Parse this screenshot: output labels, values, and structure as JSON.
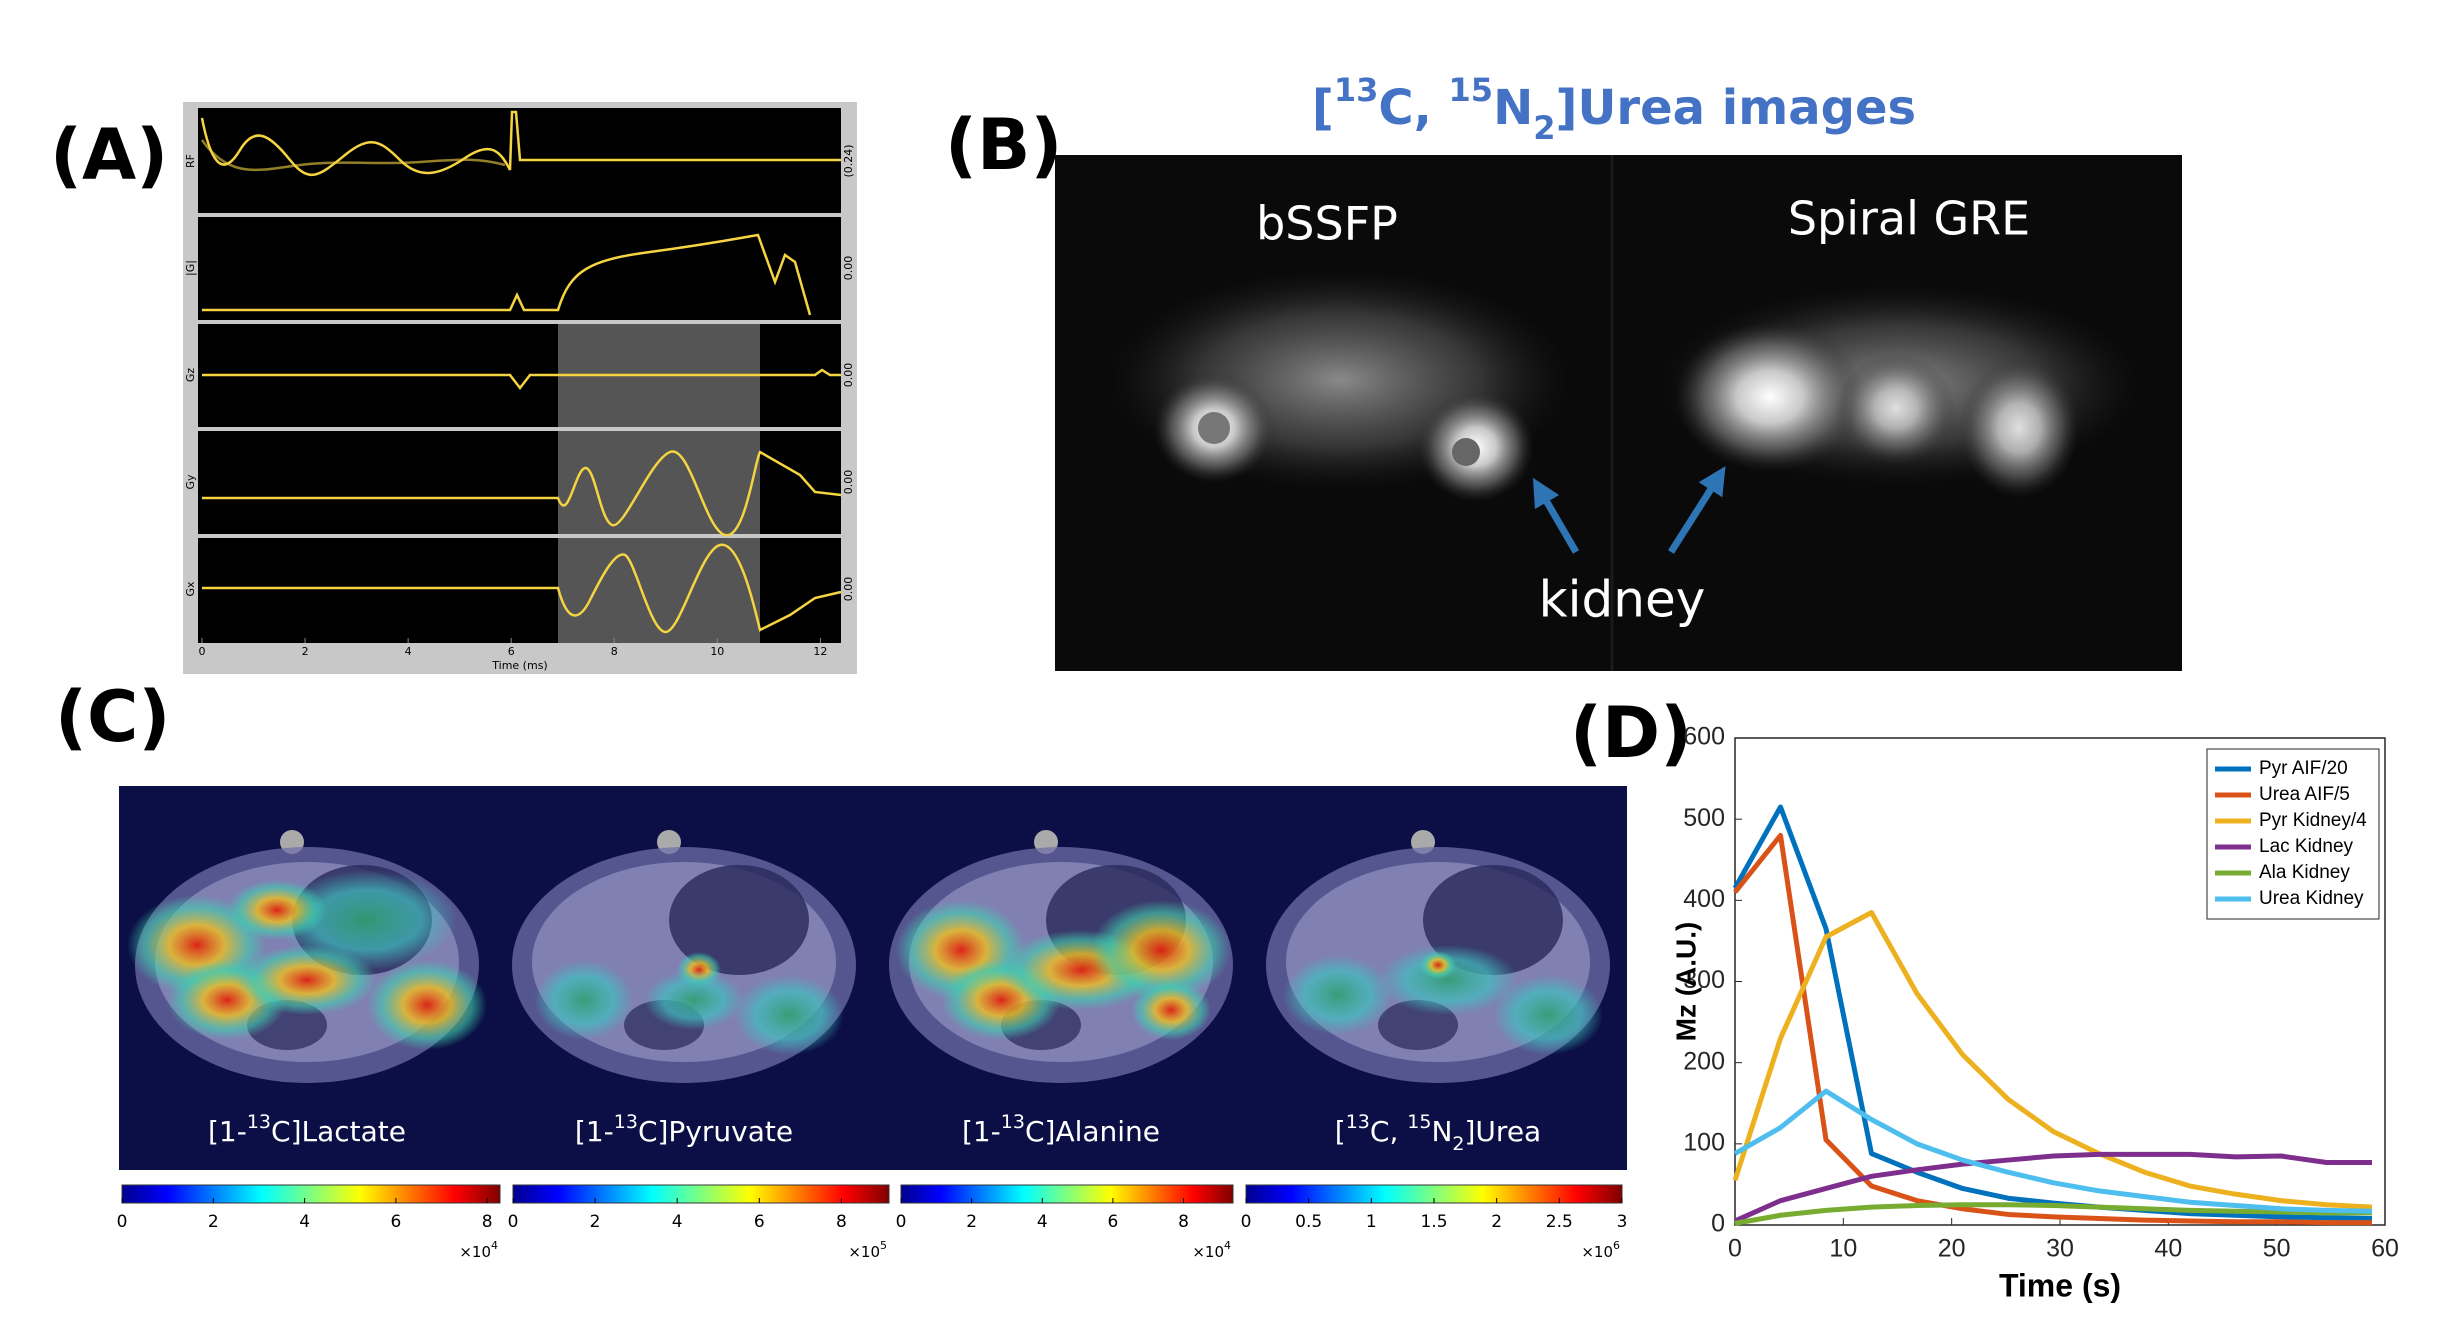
{
  "panels": {
    "a": "(A)",
    "b": "(B)",
    "c": "(C)",
    "d": "(D)"
  },
  "panel_a": {
    "channels": [
      "RF",
      "|G|",
      "Gz",
      "Gy",
      "Gx"
    ],
    "right_labels": [
      "(0.24)",
      "0.00",
      "0.00",
      "0.00",
      "0.00"
    ],
    "xlim": [
      0,
      12.4
    ],
    "xticks": [
      0,
      2,
      4,
      6,
      8,
      10,
      12
    ],
    "xlabel": "Time (ms)"
  },
  "panel_b": {
    "title": [
      "[",
      "13",
      "C, ",
      "15",
      "N",
      "2",
      "]Urea images"
    ],
    "left_label": "bSSFP",
    "right_label": "Spiral GRE",
    "arrow_label": "kidney"
  },
  "panel_c": {
    "maps": [
      {
        "label": [
          "[1-",
          "13",
          "C]Lactate"
        ],
        "lim": [
          0,
          8.28
        ],
        "ticks": [
          0,
          2,
          4,
          6,
          8
        ],
        "multiplier": [
          "×10",
          "4"
        ]
      },
      {
        "label": [
          "[1-",
          "13",
          "C]Pyruvate"
        ],
        "lim": [
          0,
          9.16
        ],
        "ticks": [
          0,
          2,
          4,
          6,
          8
        ],
        "multiplier": [
          "×10",
          "5"
        ]
      },
      {
        "label": [
          "[1-",
          "13",
          "C]Alanine"
        ],
        "lim": [
          0,
          9.4
        ],
        "ticks": [
          0,
          2,
          4,
          6,
          8
        ],
        "multiplier": [
          "×10",
          "4"
        ]
      },
      {
        "label": [
          "[",
          "13",
          "C, ",
          "15",
          "N",
          "2",
          "]Urea"
        ],
        "lim": [
          0,
          3
        ],
        "ticks": [
          0,
          0.5,
          1,
          1.5,
          2,
          2.5,
          3
        ],
        "multiplier": [
          "×10",
          "6"
        ]
      }
    ]
  },
  "chart_data": {
    "type": "line",
    "xlabel": "Time (s)",
    "ylabel": "Mz (A.U.)",
    "x": [
      0,
      4.2,
      8.4,
      12.6,
      16.8,
      21,
      25.2,
      29.4,
      33.6,
      37.8,
      42,
      46.2,
      50.4,
      54.6,
      58.8
    ],
    "series": [
      {
        "name": "Pyr AIF/20",
        "color": "#0072bd",
        "values": [
          415,
          515,
          365,
          88,
          65,
          45,
          33,
          27,
          22,
          18,
          14,
          12,
          10,
          9,
          8
        ]
      },
      {
        "name": "Urea AIF/5",
        "color": "#d95319",
        "values": [
          410,
          480,
          105,
          48,
          30,
          20,
          13,
          10,
          8,
          6,
          5,
          4,
          4,
          3,
          3
        ]
      },
      {
        "name": "Pyr Kidney/4",
        "color": "#edb120",
        "values": [
          55,
          230,
          355,
          385,
          285,
          210,
          155,
          115,
          88,
          65,
          48,
          38,
          30,
          25,
          22
        ]
      },
      {
        "name": "Lac Kidney",
        "color": "#7e2f8e",
        "values": [
          5,
          30,
          45,
          60,
          68,
          75,
          80,
          85,
          87,
          87,
          87,
          84,
          85,
          77,
          77
        ]
      },
      {
        "name": "Ala Kidney",
        "color": "#77ac30",
        "values": [
          2,
          12,
          18,
          22,
          24,
          25,
          25,
          24,
          22,
          20,
          18,
          17,
          16,
          15,
          15
        ]
      },
      {
        "name": "Urea Kidney",
        "color": "#4dbeee",
        "values": [
          88,
          120,
          165,
          130,
          100,
          80,
          65,
          52,
          42,
          35,
          28,
          24,
          20,
          18,
          17
        ]
      }
    ],
    "xlim": [
      0,
      60
    ],
    "ylim": [
      0,
      600
    ],
    "xticks": [
      0,
      10,
      20,
      30,
      40,
      50,
      60
    ],
    "yticks": [
      0,
      100,
      200,
      300,
      400,
      500,
      600
    ],
    "legend": "top-right",
    "grid": false
  }
}
